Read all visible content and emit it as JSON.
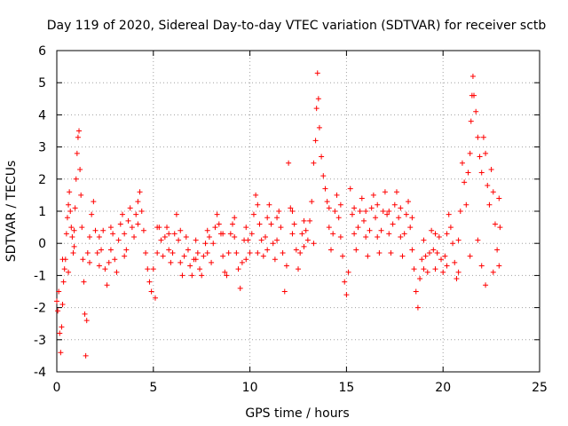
{
  "chart_data": {
    "type": "scatter",
    "title": "Day 119 of 2020, Sidereal Day-to-day VTEC variation (SDTVAR) for receiver sctb",
    "xlabel": "GPS time / hours",
    "ylabel": "SDTVAR / TECUs",
    "xlim": [
      0,
      25
    ],
    "ylim": [
      -4,
      6
    ],
    "xticks": [
      0,
      5,
      10,
      15,
      20,
      25
    ],
    "yticks": [
      -4,
      -3,
      -2,
      -1,
      0,
      1,
      2,
      3,
      4,
      5,
      6
    ],
    "grid": true,
    "marker": "+",
    "color": "#ff0000",
    "series": [
      {
        "name": "SDTVAR",
        "points": [
          [
            0.0,
            -1.8
          ],
          [
            0.05,
            -2.1
          ],
          [
            0.1,
            -1.5
          ],
          [
            0.15,
            -2.8
          ],
          [
            0.2,
            -3.4
          ],
          [
            0.25,
            -2.6
          ],
          [
            0.3,
            -1.9
          ],
          [
            0.35,
            -1.2
          ],
          [
            0.4,
            -0.8
          ],
          [
            0.45,
            -0.5
          ],
          [
            0.5,
            0.3
          ],
          [
            0.55,
            0.8
          ],
          [
            0.6,
            1.2
          ],
          [
            0.65,
            1.6
          ],
          [
            0.7,
            1.0
          ],
          [
            0.75,
            0.5
          ],
          [
            0.8,
            0.2
          ],
          [
            0.85,
            -0.3
          ],
          [
            0.9,
            0.4
          ],
          [
            0.95,
            1.1
          ],
          [
            1.0,
            2.0
          ],
          [
            1.05,
            2.8
          ],
          [
            1.1,
            3.3
          ],
          [
            1.15,
            3.5
          ],
          [
            1.2,
            2.3
          ],
          [
            1.25,
            1.5
          ],
          [
            1.3,
            0.5
          ],
          [
            1.35,
            -0.5
          ],
          [
            1.4,
            -1.2
          ],
          [
            1.45,
            -2.2
          ],
          [
            1.5,
            -3.5
          ],
          [
            1.55,
            -2.4
          ],
          [
            1.6,
            -0.3
          ],
          [
            1.7,
            0.2
          ],
          [
            1.8,
            0.9
          ],
          [
            1.9,
            1.3
          ],
          [
            2.0,
            0.4
          ],
          [
            2.1,
            -0.3
          ],
          [
            2.2,
            -0.7
          ],
          [
            2.3,
            -0.2
          ],
          [
            2.4,
            0.4
          ],
          [
            2.5,
            -0.8
          ],
          [
            2.6,
            -1.3
          ],
          [
            2.7,
            -0.6
          ],
          [
            2.8,
            -0.2
          ],
          [
            2.9,
            0.3
          ],
          [
            3.0,
            -0.5
          ],
          [
            3.1,
            -0.9
          ],
          [
            3.2,
            0.1
          ],
          [
            3.3,
            0.6
          ],
          [
            3.4,
            0.9
          ],
          [
            3.5,
            0.3
          ],
          [
            3.6,
            -0.2
          ],
          [
            3.7,
            0.7
          ],
          [
            3.8,
            1.1
          ],
          [
            3.9,
            0.5
          ],
          [
            4.0,
            0.2
          ],
          [
            4.1,
            0.9
          ],
          [
            4.2,
            1.3
          ],
          [
            4.3,
            1.6
          ],
          [
            4.4,
            1.0
          ],
          [
            4.5,
            0.4
          ],
          [
            4.6,
            -0.3
          ],
          [
            4.7,
            -0.8
          ],
          [
            4.8,
            -1.2
          ],
          [
            4.9,
            -1.5
          ],
          [
            5.0,
            -0.8
          ],
          [
            5.1,
            -1.7
          ],
          [
            5.2,
            -0.3
          ],
          [
            5.3,
            0.5
          ],
          [
            5.4,
            0.1
          ],
          [
            5.5,
            -0.4
          ],
          [
            5.6,
            0.2
          ],
          [
            5.7,
            0.5
          ],
          [
            5.8,
            -0.2
          ],
          [
            5.9,
            -0.6
          ],
          [
            6.0,
            -0.3
          ],
          [
            6.1,
            0.3
          ],
          [
            6.2,
            0.9
          ],
          [
            6.3,
            0.1
          ],
          [
            6.4,
            -0.6
          ],
          [
            6.5,
            -1.0
          ],
          [
            6.6,
            -0.4
          ],
          [
            6.7,
            0.2
          ],
          [
            6.8,
            -0.2
          ],
          [
            6.9,
            -0.7
          ],
          [
            7.0,
            -1.0
          ],
          [
            7.1,
            -0.5
          ],
          [
            7.2,
            0.1
          ],
          [
            7.3,
            -0.3
          ],
          [
            7.4,
            -0.8
          ],
          [
            7.5,
            -1.0
          ],
          [
            7.6,
            -0.4
          ],
          [
            7.7,
            0.0
          ],
          [
            7.8,
            0.4
          ],
          [
            7.9,
            0.2
          ],
          [
            8.0,
            -0.6
          ],
          [
            8.1,
            0.0
          ],
          [
            8.2,
            0.5
          ],
          [
            8.3,
            0.9
          ],
          [
            8.4,
            0.6
          ],
          [
            8.5,
            0.3
          ],
          [
            8.6,
            -0.4
          ],
          [
            8.7,
            -0.9
          ],
          [
            8.8,
            -1.0
          ],
          [
            8.9,
            -0.3
          ],
          [
            9.0,
            0.3
          ],
          [
            9.1,
            0.6
          ],
          [
            9.2,
            0.2
          ],
          [
            9.3,
            -0.3
          ],
          [
            9.4,
            -0.8
          ],
          [
            9.5,
            -1.4
          ],
          [
            9.6,
            -0.6
          ],
          [
            9.7,
            0.1
          ],
          [
            9.8,
            0.5
          ],
          [
            9.9,
            0.1
          ],
          [
            10.0,
            -0.3
          ],
          [
            10.1,
            0.3
          ],
          [
            10.2,
            0.9
          ],
          [
            10.3,
            1.5
          ],
          [
            10.4,
            1.2
          ],
          [
            10.5,
            0.6
          ],
          [
            10.6,
            0.1
          ],
          [
            10.7,
            -0.4
          ],
          [
            10.8,
            0.2
          ],
          [
            10.9,
            0.8
          ],
          [
            11.0,
            1.2
          ],
          [
            11.1,
            0.6
          ],
          [
            11.2,
            0.0
          ],
          [
            11.3,
            -0.5
          ],
          [
            11.4,
            0.1
          ],
          [
            11.5,
            1.0
          ],
          [
            11.6,
            0.5
          ],
          [
            11.7,
            -0.3
          ],
          [
            11.8,
            -1.5
          ],
          [
            11.9,
            -0.7
          ],
          [
            12.0,
            2.5
          ],
          [
            12.1,
            1.1
          ],
          [
            12.2,
            0.3
          ],
          [
            12.3,
            0.6
          ],
          [
            12.4,
            -0.2
          ],
          [
            12.5,
            -0.8
          ],
          [
            12.6,
            -0.3
          ],
          [
            12.7,
            0.3
          ],
          [
            12.8,
            0.7
          ],
          [
            12.9,
            0.4
          ],
          [
            13.0,
            0.1
          ],
          [
            13.1,
            0.7
          ],
          [
            13.2,
            1.3
          ],
          [
            13.3,
            2.5
          ],
          [
            13.4,
            3.2
          ],
          [
            13.45,
            4.2
          ],
          [
            13.5,
            5.3
          ],
          [
            13.55,
            4.5
          ],
          [
            13.6,
            3.6
          ],
          [
            13.7,
            2.7
          ],
          [
            13.8,
            2.1
          ],
          [
            13.9,
            1.7
          ],
          [
            14.0,
            1.3
          ],
          [
            14.1,
            0.5
          ],
          [
            14.2,
            -0.2
          ],
          [
            14.3,
            0.3
          ],
          [
            14.4,
            1.0
          ],
          [
            14.5,
            1.5
          ],
          [
            14.6,
            0.8
          ],
          [
            14.7,
            0.2
          ],
          [
            14.8,
            -0.4
          ],
          [
            14.9,
            -1.2
          ],
          [
            15.0,
            -1.6
          ],
          [
            15.1,
            -0.9
          ],
          [
            15.2,
            1.7
          ],
          [
            15.3,
            0.9
          ],
          [
            15.4,
            0.3
          ],
          [
            15.5,
            -0.2
          ],
          [
            15.6,
            0.5
          ],
          [
            15.7,
            1.0
          ],
          [
            15.8,
            1.4
          ],
          [
            15.9,
            0.7
          ],
          [
            16.0,
            0.2
          ],
          [
            16.1,
            -0.4
          ],
          [
            16.2,
            0.4
          ],
          [
            16.3,
            1.1
          ],
          [
            16.4,
            1.5
          ],
          [
            16.5,
            0.8
          ],
          [
            16.6,
            0.2
          ],
          [
            16.7,
            -0.3
          ],
          [
            16.8,
            0.4
          ],
          [
            16.9,
            1.0
          ],
          [
            17.0,
            1.6
          ],
          [
            17.1,
            0.9
          ],
          [
            17.2,
            0.3
          ],
          [
            17.3,
            -0.3
          ],
          [
            17.4,
            0.6
          ],
          [
            17.5,
            1.2
          ],
          [
            17.6,
            1.6
          ],
          [
            17.7,
            0.8
          ],
          [
            17.8,
            0.2
          ],
          [
            17.9,
            -0.4
          ],
          [
            18.0,
            0.3
          ],
          [
            18.1,
            0.9
          ],
          [
            18.2,
            1.3
          ],
          [
            18.3,
            0.5
          ],
          [
            18.4,
            -0.2
          ],
          [
            18.5,
            -0.8
          ],
          [
            18.6,
            -1.5
          ],
          [
            18.7,
            -2.0
          ],
          [
            18.8,
            -1.1
          ],
          [
            18.9,
            -0.5
          ],
          [
            19.0,
            0.1
          ],
          [
            19.1,
            -0.4
          ],
          [
            19.2,
            -0.9
          ],
          [
            19.3,
            -0.3
          ],
          [
            19.4,
            0.4
          ],
          [
            19.5,
            -0.2
          ],
          [
            19.6,
            -0.8
          ],
          [
            19.7,
            -0.3
          ],
          [
            19.8,
            0.2
          ],
          [
            19.9,
            -0.5
          ],
          [
            20.0,
            -0.9
          ],
          [
            20.1,
            -0.4
          ],
          [
            20.2,
            0.3
          ],
          [
            20.3,
            0.9
          ],
          [
            20.4,
            0.5
          ],
          [
            20.5,
            0.0
          ],
          [
            20.6,
            -0.6
          ],
          [
            20.7,
            -1.1
          ],
          [
            20.8,
            0.1
          ],
          [
            20.9,
            1.0
          ],
          [
            21.0,
            2.5
          ],
          [
            21.1,
            1.9
          ],
          [
            21.2,
            1.2
          ],
          [
            21.3,
            2.2
          ],
          [
            21.4,
            2.8
          ],
          [
            21.45,
            3.8
          ],
          [
            21.5,
            4.6
          ],
          [
            21.55,
            5.2
          ],
          [
            21.6,
            4.6
          ],
          [
            21.7,
            4.1
          ],
          [
            21.8,
            3.3
          ],
          [
            21.9,
            2.7
          ],
          [
            22.0,
            2.2
          ],
          [
            22.1,
            3.3
          ],
          [
            22.2,
            2.8
          ],
          [
            22.3,
            1.8
          ],
          [
            22.4,
            1.2
          ],
          [
            22.5,
            2.3
          ],
          [
            22.6,
            1.6
          ],
          [
            22.7,
            0.6
          ],
          [
            22.8,
            -0.2
          ],
          [
            22.9,
            -0.7
          ],
          [
            22.95,
            0.5
          ],
          [
            0.3,
            -0.5
          ],
          [
            0.6,
            -0.9
          ],
          [
            0.9,
            -0.1
          ],
          [
            1.7,
            -0.6
          ],
          [
            2.2,
            0.2
          ],
          [
            2.8,
            0.5
          ],
          [
            3.5,
            -0.4
          ],
          [
            4.2,
            0.6
          ],
          [
            5.2,
            0.5
          ],
          [
            5.8,
            0.3
          ],
          [
            6.4,
            0.4
          ],
          [
            7.2,
            -0.5
          ],
          [
            7.8,
            -0.3
          ],
          [
            8.6,
            0.3
          ],
          [
            9.2,
            0.8
          ],
          [
            9.8,
            -0.5
          ],
          [
            10.4,
            -0.3
          ],
          [
            10.9,
            -0.2
          ],
          [
            11.4,
            0.8
          ],
          [
            12.2,
            1.0
          ],
          [
            12.8,
            -0.1
          ],
          [
            13.3,
            0.0
          ],
          [
            14.1,
            1.1
          ],
          [
            14.7,
            1.2
          ],
          [
            15.4,
            1.1
          ],
          [
            16.0,
            1.0
          ],
          [
            16.6,
            1.2
          ],
          [
            17.2,
            1.0
          ],
          [
            17.8,
            1.1
          ],
          [
            18.4,
            0.8
          ],
          [
            19.0,
            -0.8
          ],
          [
            19.6,
            0.3
          ],
          [
            20.2,
            -0.7
          ],
          [
            20.8,
            -0.9
          ],
          [
            21.4,
            -0.4
          ],
          [
            22.0,
            -0.7
          ],
          [
            22.6,
            -0.9
          ],
          [
            22.9,
            1.4
          ],
          [
            21.8,
            0.1
          ],
          [
            22.2,
            -1.3
          ]
        ]
      }
    ]
  }
}
